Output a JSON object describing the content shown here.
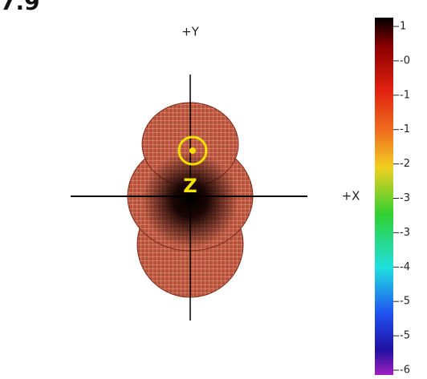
{
  "header": {
    "title": "7.9"
  },
  "axes": {
    "y_label": "+Y",
    "x_label": "+X",
    "z_label": "Z"
  },
  "colorbar": {
    "labels": [
      "1",
      "-0",
      "-1",
      "-1",
      "-2",
      "-3",
      "-3",
      "-4",
      "-5",
      "-5",
      "-6"
    ]
  }
}
